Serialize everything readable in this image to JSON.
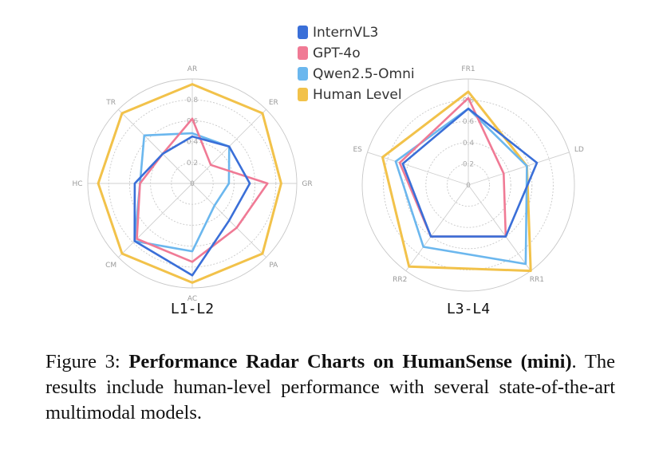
{
  "legend": {
    "items": [
      {
        "label": "InternVL3",
        "color": "#3a6fd8"
      },
      {
        "label": "GPT-4o",
        "color": "#f07a95"
      },
      {
        "label": "Qwen2.5-Omni",
        "color": "#6bb7ee"
      },
      {
        "label": "Human Level",
        "color": "#f2c24a"
      }
    ]
  },
  "chart_data": [
    {
      "type": "radar",
      "title": "L1-L2",
      "axes": [
        "AR",
        "ER",
        "GR",
        "PA",
        "AC",
        "CM",
        "HC",
        "TR"
      ],
      "ticks": [
        "0",
        "0.2",
        "0.4",
        "0.6",
        "0.8"
      ],
      "range": [
        0,
        1
      ],
      "grid": true,
      "series": [
        {
          "name": "Human Level",
          "values": [
            0.95,
            0.95,
            0.85,
            0.95,
            0.95,
            0.95,
            0.9,
            0.95
          ]
        },
        {
          "name": "InternVL3",
          "values": [
            0.45,
            0.5,
            0.55,
            0.5,
            0.88,
            0.78,
            0.55,
            0.4
          ]
        },
        {
          "name": "GPT-4o",
          "values": [
            0.62,
            0.25,
            0.72,
            0.6,
            0.75,
            0.75,
            0.5,
            0.4
          ]
        },
        {
          "name": "Qwen2.5-Omni",
          "values": [
            0.48,
            0.5,
            0.35,
            0.3,
            0.65,
            0.78,
            0.5,
            0.65
          ]
        }
      ]
    },
    {
      "type": "radar",
      "title": "L3-L4",
      "axes": [
        "FR1",
        "LD",
        "RR1",
        "RR2",
        "ES"
      ],
      "ticks": [
        "0",
        "0.2",
        "0.4",
        "0.6",
        "0.8"
      ],
      "range": [
        0,
        1
      ],
      "grid": true,
      "series": [
        {
          "name": "Human Level",
          "values": [
            0.88,
            0.58,
            1.0,
            0.95,
            0.85
          ]
        },
        {
          "name": "InternVL3",
          "values": [
            0.72,
            0.68,
            0.6,
            0.6,
            0.65
          ]
        },
        {
          "name": "GPT-4o",
          "values": [
            0.82,
            0.35,
            0.6,
            0.6,
            0.68
          ]
        },
        {
          "name": "Qwen2.5-Omni",
          "values": [
            0.72,
            0.58,
            0.92,
            0.72,
            0.72
          ]
        }
      ]
    }
  ],
  "caption": {
    "prefix": "Figure 3: ",
    "bold": "Performance Radar Charts on HumanSense (mini)",
    "rest": ". The results include human-level performance with several state-of-the-art multimodal models."
  }
}
